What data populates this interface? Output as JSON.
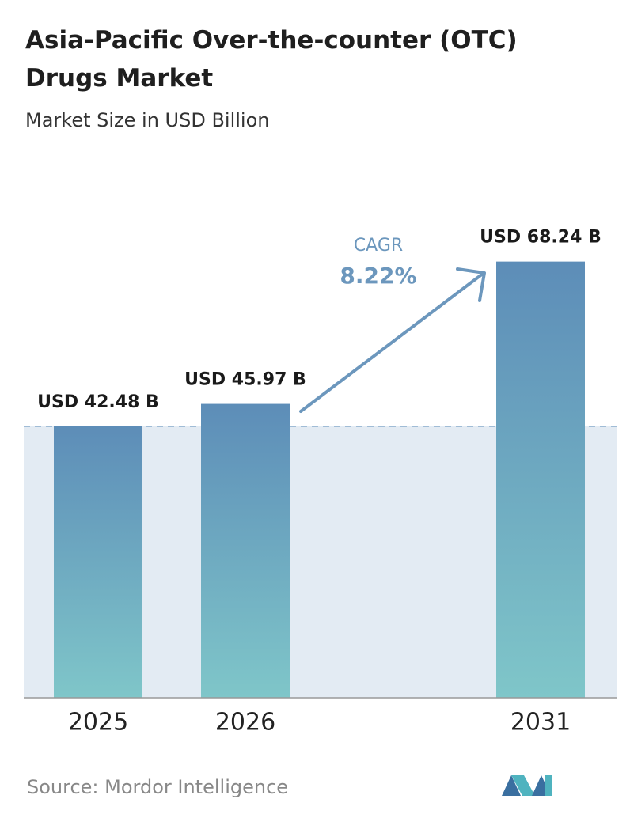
{
  "chart_data": {
    "type": "bar",
    "title": "Asia-Pacific Over-the-counter (OTC) Drugs Market",
    "subtitle": "Market Size in USD Billion",
    "categories": [
      "2025",
      "2026",
      "2031"
    ],
    "values": [
      42.48,
      45.97,
      68.24
    ],
    "value_labels": [
      "USD 42.48 B",
      "USD 45.97 B",
      "USD 68.24 B"
    ],
    "colors": {
      "top": "#5d8db8",
      "bottom": "#7fc6c9"
    },
    "ylim": [
      0,
      70
    ],
    "annotation": {
      "label": "CAGR",
      "text": "8.22%"
    },
    "source": "Source:  Mordor Intelligence"
  }
}
